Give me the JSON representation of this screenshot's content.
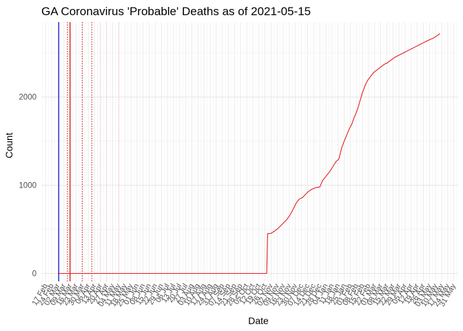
{
  "chart_data": {
    "type": "line",
    "title": "GA Coronavirus 'Probable' Deaths as of 2021-05-15",
    "xlabel": "Date",
    "ylabel": "Count",
    "ylim": [
      -90,
      2850
    ],
    "xlim": [
      "2020-02-12",
      "2021-06-05"
    ],
    "y_ticks": [
      0,
      1000,
      2000
    ],
    "x_tick_labels": [
      "17 Feb",
      "24 Feb",
      "02 Mar",
      "09 Mar",
      "16 Mar",
      "23 Mar",
      "30 Mar",
      "06 Apr",
      "13 Apr",
      "20 Apr",
      "27 Apr",
      "04 May",
      "11 May",
      "18 May",
      "25 May",
      "01 Jun",
      "08 Jun",
      "15 Jun",
      "22 Jun",
      "29 Jun",
      "06 Jul",
      "13 Jul",
      "20 Jul",
      "27 Jul",
      "03 Aug",
      "10 Aug",
      "17 Aug",
      "24 Aug",
      "31 Aug",
      "07 Sep",
      "14 Sep",
      "21 Sep",
      "28 Sep",
      "05 Oct",
      "12 Oct",
      "19 Oct",
      "26 Oct",
      "02 Nov",
      "09 Nov",
      "16 Nov",
      "23 Nov",
      "30 Nov",
      "07 Dec",
      "14 Dec",
      "21 Dec",
      "28 Dec",
      "04 Jan",
      "11 Jan",
      "18 Jan",
      "25 Jan",
      "01 Feb",
      "08 Feb",
      "15 Feb",
      "22 Feb",
      "01 Mar",
      "08 Mar",
      "15 Mar",
      "22 Mar",
      "29 Mar",
      "05 Apr",
      "12 Apr",
      "19 Apr",
      "26 Apr",
      "03 May",
      "10 May",
      "17 May",
      "24 May",
      "31 May"
    ],
    "grid": true,
    "series": [
      {
        "color": "#e41a1c",
        "points": [
          [
            "2020-03-02",
            0
          ],
          [
            "2020-10-28",
            0
          ],
          [
            "2020-10-29",
            450
          ],
          [
            "2020-11-02",
            455
          ],
          [
            "2020-11-06",
            480
          ],
          [
            "2020-11-10",
            510
          ],
          [
            "2020-11-15",
            560
          ],
          [
            "2020-11-20",
            610
          ],
          [
            "2020-11-23",
            650
          ],
          [
            "2020-11-27",
            720
          ],
          [
            "2020-12-01",
            800
          ],
          [
            "2020-12-04",
            840
          ],
          [
            "2020-12-08",
            860
          ],
          [
            "2020-12-11",
            890
          ],
          [
            "2020-12-15",
            930
          ],
          [
            "2020-12-19",
            955
          ],
          [
            "2020-12-24",
            975
          ],
          [
            "2020-12-28",
            980
          ],
          [
            "2020-12-31",
            1050
          ],
          [
            "2021-01-04",
            1100
          ],
          [
            "2021-01-08",
            1150
          ],
          [
            "2021-01-12",
            1210
          ],
          [
            "2021-01-15",
            1260
          ],
          [
            "2021-01-19",
            1300
          ],
          [
            "2021-01-22",
            1420
          ],
          [
            "2021-01-25",
            1500
          ],
          [
            "2021-01-28",
            1570
          ],
          [
            "2021-01-31",
            1640
          ],
          [
            "2021-02-03",
            1700
          ],
          [
            "2021-02-06",
            1780
          ],
          [
            "2021-02-09",
            1850
          ],
          [
            "2021-02-12",
            1950
          ],
          [
            "2021-02-15",
            2050
          ],
          [
            "2021-02-18",
            2130
          ],
          [
            "2021-02-21",
            2190
          ],
          [
            "2021-02-24",
            2230
          ],
          [
            "2021-02-28",
            2280
          ],
          [
            "2021-03-04",
            2310
          ],
          [
            "2021-03-08",
            2340
          ],
          [
            "2021-03-12",
            2370
          ],
          [
            "2021-03-16",
            2390
          ],
          [
            "2021-03-20",
            2420
          ],
          [
            "2021-03-24",
            2450
          ],
          [
            "2021-03-28",
            2470
          ],
          [
            "2021-04-01",
            2490
          ],
          [
            "2021-04-05",
            2510
          ],
          [
            "2021-04-09",
            2530
          ],
          [
            "2021-04-13",
            2550
          ],
          [
            "2021-04-17",
            2570
          ],
          [
            "2021-04-21",
            2590
          ],
          [
            "2021-04-25",
            2610
          ],
          [
            "2021-04-29",
            2630
          ],
          [
            "2021-05-03",
            2650
          ],
          [
            "2021-05-07",
            2665
          ],
          [
            "2021-05-11",
            2690
          ],
          [
            "2021-05-15",
            2720
          ]
        ]
      }
    ],
    "vlines": [
      {
        "date": "2020-03-03",
        "color": "#0000cd",
        "style": "solid"
      },
      {
        "date": "2020-03-16",
        "color": "#cc0000",
        "style": "solid"
      },
      {
        "date": "2020-03-13",
        "color": "#cc0000",
        "style": "dotted"
      },
      {
        "date": "2020-03-30",
        "color": "#cc0000",
        "style": "dotted"
      },
      {
        "date": "2020-04-10",
        "color": "#cc0000",
        "style": "dotted"
      },
      {
        "date": "2020-04-20",
        "color": "#f4b8b8",
        "style": "dotted"
      },
      {
        "date": "2020-04-27",
        "color": "#f4b8b8",
        "style": "dotted"
      },
      {
        "date": "2020-05-11",
        "color": "#f4b8b8",
        "style": "dotted"
      }
    ]
  }
}
